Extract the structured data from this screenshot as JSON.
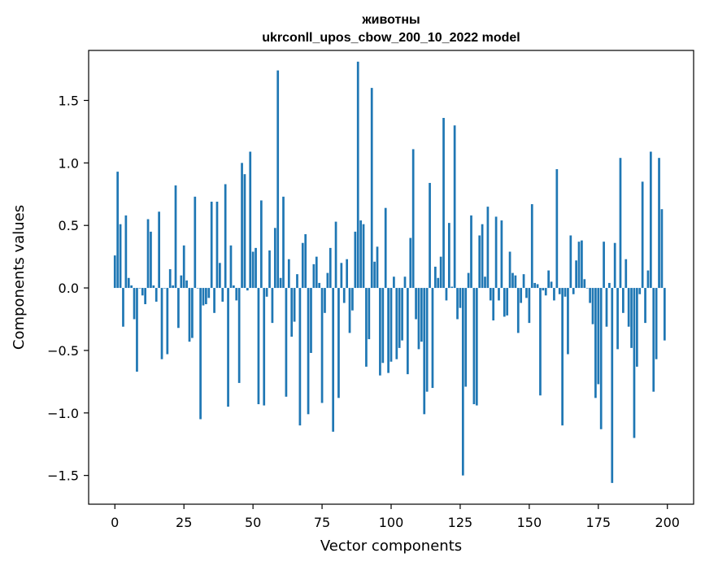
{
  "chart_data": {
    "type": "bar",
    "title": "животны",
    "subtitle": "ukrconll_upos_cbow_200_10_2022 model",
    "xlabel": "Vector components",
    "ylabel": "Components values",
    "xlim": [
      -9.5,
      209.5
    ],
    "ylim": [
      -1.73,
      1.9
    ],
    "xticks": [
      0,
      25,
      50,
      75,
      100,
      125,
      150,
      175,
      200
    ],
    "xtick_labels": [
      "0",
      "25",
      "50",
      "75",
      "100",
      "125",
      "150",
      "175",
      "200"
    ],
    "yticks": [
      -1.5,
      -1.0,
      -0.5,
      0.0,
      0.5,
      1.0,
      1.5
    ],
    "ytick_labels": [
      "−1.5",
      "−1.0",
      "−0.5",
      "0.0",
      "0.5",
      "1.0",
      "1.5"
    ],
    "grid": false,
    "bar_color": "#1f77b4",
    "values": [
      0.26,
      0.93,
      0.51,
      -0.31,
      0.58,
      0.08,
      0.02,
      -0.25,
      -0.67,
      0.0,
      -0.06,
      -0.13,
      0.55,
      0.45,
      0.02,
      -0.11,
      0.61,
      -0.57,
      0.0,
      -0.53,
      0.15,
      0.02,
      0.82,
      -0.32,
      0.1,
      0.34,
      0.06,
      -0.43,
      -0.4,
      0.73,
      0.0,
      -1.05,
      -0.14,
      -0.13,
      -0.08,
      0.69,
      -0.2,
      0.69,
      0.2,
      -0.11,
      0.83,
      -0.95,
      0.34,
      0.02,
      -0.1,
      -0.76,
      1.0,
      0.91,
      -0.02,
      1.09,
      0.29,
      0.32,
      -0.93,
      0.7,
      -0.94,
      -0.07,
      0.3,
      -0.28,
      0.48,
      1.74,
      0.08,
      0.73,
      -0.87,
      0.23,
      -0.39,
      -0.27,
      0.11,
      -1.1,
      0.36,
      0.43,
      -1.01,
      -0.52,
      0.19,
      0.25,
      0.04,
      -0.92,
      -0.2,
      0.12,
      0.32,
      -1.15,
      0.53,
      -0.88,
      0.2,
      -0.12,
      0.23,
      -0.36,
      -0.18,
      0.45,
      1.81,
      0.54,
      0.51,
      -0.63,
      -0.41,
      1.6,
      0.21,
      0.33,
      -0.7,
      -0.6,
      0.64,
      -0.68,
      -0.59,
      0.09,
      -0.57,
      -0.48,
      -0.42,
      0.09,
      -0.69,
      0.4,
      1.11,
      -0.25,
      -0.49,
      -0.43,
      -1.01,
      -0.83,
      0.84,
      -0.8,
      0.17,
      0.08,
      0.25,
      1.36,
      -0.1,
      0.52,
      0.01,
      1.3,
      -0.25,
      -0.16,
      -1.5,
      -0.79,
      0.12,
      0.58,
      -0.93,
      -0.94,
      0.42,
      0.51,
      0.09,
      0.65,
      -0.1,
      -0.26,
      0.57,
      -0.1,
      0.54,
      -0.23,
      -0.22,
      0.29,
      0.12,
      0.1,
      -0.36,
      -0.12,
      0.11,
      -0.08,
      -0.28,
      0.67,
      0.04,
      0.03,
      -0.86,
      -0.02,
      -0.06,
      0.14,
      0.05,
      -0.1,
      0.95,
      -0.05,
      -1.1,
      -0.07,
      -0.53,
      0.42,
      -0.05,
      0.22,
      0.37,
      0.38,
      0.07,
      0.0,
      -0.12,
      -0.29,
      -0.88,
      -0.77,
      -1.13,
      0.37,
      -0.31,
      0.04,
      -1.56,
      0.36,
      -0.49,
      1.04,
      -0.2,
      0.23,
      -0.31,
      -0.48,
      -1.2,
      -0.63,
      -0.05,
      0.85,
      -0.28,
      0.14,
      1.09,
      -0.83,
      -0.57,
      1.04,
      0.63,
      -0.42
    ]
  }
}
